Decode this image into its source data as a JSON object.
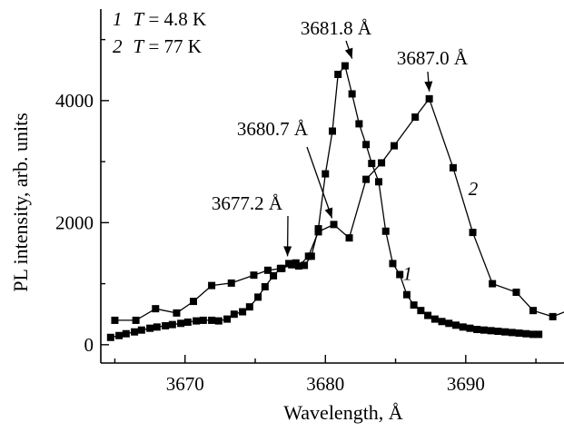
{
  "chart_data": {
    "type": "line",
    "xlabel": "Wavelength, Å",
    "ylabel": "PL intensity, arb. units",
    "xlim": [
      3664,
      3697
    ],
    "ylim": [
      -300,
      5500
    ],
    "xticks": [
      3670,
      3680,
      3690
    ],
    "yticks": [
      0,
      2000,
      4000
    ],
    "grid": false,
    "legend": {
      "placement": "top-left",
      "entries": [
        {
          "num": "1",
          "var": "T",
          "eq": " = 4.8 K"
        },
        {
          "num": "2",
          "var": "T",
          "eq": " = 77 K"
        }
      ]
    },
    "series": [
      {
        "name": "1",
        "x": [
          3664.7,
          3665.3,
          3665.8,
          3666.4,
          3666.9,
          3667.5,
          3668.0,
          3668.6,
          3669.1,
          3669.7,
          3670.2,
          3670.8,
          3671.3,
          3671.9,
          3672.4,
          3673.0,
          3673.5,
          3674.1,
          3674.6,
          3675.2,
          3675.7,
          3676.3,
          3676.8,
          3677.4,
          3677.9,
          3678.5,
          3679.0,
          3679.5,
          3680.0,
          3680.5,
          3680.9,
          3681.4,
          3681.9,
          3682.4,
          3682.9,
          3683.3,
          3683.8,
          3684.3,
          3684.8,
          3685.3,
          3685.8,
          3686.3,
          3686.8,
          3687.3,
          3687.8,
          3688.3,
          3688.8,
          3689.3,
          3689.8,
          3690.3,
          3690.8,
          3691.3,
          3691.8,
          3692.3,
          3692.8,
          3693.3,
          3693.8,
          3694.3,
          3694.8,
          3695.2
        ],
        "y": [
          120,
          150,
          180,
          210,
          240,
          270,
          290,
          310,
          330,
          350,
          370,
          390,
          400,
          400,
          390,
          420,
          500,
          540,
          620,
          780,
          950,
          1130,
          1250,
          1330,
          1340,
          1300,
          1450,
          1900,
          2800,
          3500,
          4430,
          4570,
          4110,
          3620,
          3280,
          2970,
          2670,
          1860,
          1330,
          1150,
          820,
          650,
          560,
          480,
          420,
          380,
          350,
          320,
          290,
          270,
          250,
          240,
          230,
          220,
          210,
          200,
          190,
          180,
          170,
          170
        ]
      },
      {
        "name": "2",
        "x": [
          3665.0,
          3666.5,
          3667.9,
          3669.4,
          3670.6,
          3671.9,
          3673.3,
          3674.9,
          3675.9,
          3676.9,
          3677.6,
          3678.1,
          3678.8,
          3679.5,
          3680.6,
          3681.7,
          3682.9,
          3684.0,
          3684.9,
          3686.4,
          3687.4,
          3689.1,
          3690.5,
          3691.9,
          3693.6,
          3694.8,
          3696.2,
          3697.6
        ],
        "y": [
          400,
          400,
          590,
          520,
          710,
          970,
          1010,
          1140,
          1220,
          1250,
          1310,
          1290,
          1450,
          1850,
          1970,
          1750,
          2710,
          2980,
          3260,
          3730,
          4030,
          2900,
          1840,
          1000,
          860,
          560,
          460,
          590
        ]
      }
    ],
    "annotations": [
      {
        "text": "3681.8 Å",
        "x": 3681.9,
        "y": 4570
      },
      {
        "text": "3687.0 Å",
        "x": 3687.4,
        "y": 4030
      },
      {
        "text": "3680.7 Å",
        "x": 3680.6,
        "y": 1970
      },
      {
        "text": "3677.2 Å",
        "x": 3677.3,
        "y": 1330
      }
    ],
    "curve_labels": [
      {
        "text": "1",
        "x": 3685.0,
        "y": 1150
      },
      {
        "text": "2",
        "x": 3689.8,
        "y": 2300
      }
    ]
  }
}
